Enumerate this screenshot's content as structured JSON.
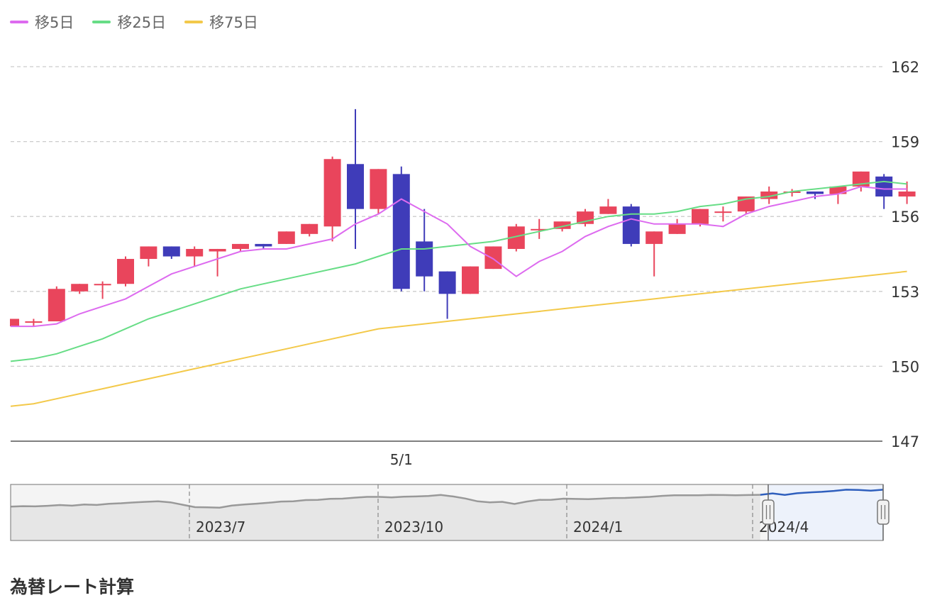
{
  "legend": [
    {
      "name": "移5日",
      "color": "#dd6bef"
    },
    {
      "name": "移25日",
      "color": "#67dd86"
    },
    {
      "name": "移75日",
      "color": "#f3c94a"
    }
  ],
  "colors": {
    "up": "#e9455c",
    "down": "#3f3cb9",
    "grid": "#cccccc",
    "axis": "#555555",
    "nav_line": "#999999",
    "nav_selected_line": "#2f5fbd",
    "nav_selected_fill": "#edf2fb",
    "nav_fill": "#e6e6e6"
  },
  "chart_data": {
    "type": "candlestick",
    "y_ticks": [
      147,
      150,
      153,
      156,
      159,
      162
    ],
    "ylim": [
      147,
      162
    ],
    "x_tick_label": "5/1",
    "x_tick_index": 17,
    "candles": [
      {
        "o": 151.6,
        "h": 151.9,
        "l": 151.6,
        "c": 151.9
      },
      {
        "o": 151.8,
        "h": 151.9,
        "l": 151.6,
        "c": 151.8
      },
      {
        "o": 151.8,
        "h": 153.2,
        "l": 151.8,
        "c": 153.1
      },
      {
        "o": 153.0,
        "h": 153.3,
        "l": 152.9,
        "c": 153.3
      },
      {
        "o": 153.3,
        "h": 153.4,
        "l": 152.7,
        "c": 153.3
      },
      {
        "o": 153.3,
        "h": 154.4,
        "l": 153.2,
        "c": 154.3
      },
      {
        "o": 154.3,
        "h": 154.8,
        "l": 154.0,
        "c": 154.8
      },
      {
        "o": 154.8,
        "h": 154.8,
        "l": 154.3,
        "c": 154.4
      },
      {
        "o": 154.4,
        "h": 154.8,
        "l": 154.0,
        "c": 154.7
      },
      {
        "o": 154.6,
        "h": 154.7,
        "l": 153.6,
        "c": 154.7
      },
      {
        "o": 154.7,
        "h": 154.9,
        "l": 154.6,
        "c": 154.9
      },
      {
        "o": 154.9,
        "h": 154.9,
        "l": 154.7,
        "c": 154.8
      },
      {
        "o": 154.9,
        "h": 155.4,
        "l": 154.9,
        "c": 155.4
      },
      {
        "o": 155.3,
        "h": 155.7,
        "l": 155.2,
        "c": 155.7
      },
      {
        "o": 155.6,
        "h": 158.4,
        "l": 155.0,
        "c": 158.3
      },
      {
        "o": 158.1,
        "h": 160.3,
        "l": 154.7,
        "c": 156.3
      },
      {
        "o": 156.3,
        "h": 157.9,
        "l": 156.1,
        "c": 157.9
      },
      {
        "o": 157.7,
        "h": 158.0,
        "l": 153.0,
        "c": 153.1
      },
      {
        "o": 155.0,
        "h": 156.3,
        "l": 153.0,
        "c": 153.6
      },
      {
        "o": 153.8,
        "h": 153.8,
        "l": 151.9,
        "c": 152.9
      },
      {
        "o": 152.9,
        "h": 154.0,
        "l": 152.9,
        "c": 154.0
      },
      {
        "o": 153.9,
        "h": 154.8,
        "l": 153.9,
        "c": 154.8
      },
      {
        "o": 154.7,
        "h": 155.7,
        "l": 154.6,
        "c": 155.6
      },
      {
        "o": 155.5,
        "h": 155.9,
        "l": 155.1,
        "c": 155.5
      },
      {
        "o": 155.5,
        "h": 155.8,
        "l": 155.4,
        "c": 155.8
      },
      {
        "o": 155.7,
        "h": 156.3,
        "l": 155.6,
        "c": 156.2
      },
      {
        "o": 156.1,
        "h": 156.7,
        "l": 156.1,
        "c": 156.4
      },
      {
        "o": 156.4,
        "h": 156.5,
        "l": 154.8,
        "c": 154.9
      },
      {
        "o": 154.9,
        "h": 155.4,
        "l": 153.6,
        "c": 155.4
      },
      {
        "o": 155.3,
        "h": 155.9,
        "l": 155.3,
        "c": 155.7
      },
      {
        "o": 155.7,
        "h": 156.3,
        "l": 155.6,
        "c": 156.3
      },
      {
        "o": 156.2,
        "h": 156.4,
        "l": 155.8,
        "c": 156.2
      },
      {
        "o": 156.2,
        "h": 156.8,
        "l": 156.1,
        "c": 156.8
      },
      {
        "o": 156.7,
        "h": 157.2,
        "l": 156.5,
        "c": 157.0
      },
      {
        "o": 157.0,
        "h": 157.1,
        "l": 156.8,
        "c": 157.0
      },
      {
        "o": 157.0,
        "h": 157.0,
        "l": 156.7,
        "c": 156.9
      },
      {
        "o": 156.9,
        "h": 157.2,
        "l": 156.5,
        "c": 157.2
      },
      {
        "o": 157.2,
        "h": 157.8,
        "l": 157.0,
        "c": 157.8
      },
      {
        "o": 157.6,
        "h": 157.7,
        "l": 156.3,
        "c": 156.8
      },
      {
        "o": 156.8,
        "h": 157.4,
        "l": 156.5,
        "c": 157.0
      }
    ],
    "ma5": [
      151.6,
      151.6,
      151.7,
      152.1,
      152.4,
      152.7,
      153.2,
      153.7,
      154.0,
      154.3,
      154.6,
      154.7,
      154.7,
      154.9,
      155.1,
      155.7,
      156.1,
      156.7,
      156.2,
      155.7,
      154.8,
      154.3,
      153.6,
      154.2,
      154.6,
      155.2,
      155.6,
      155.9,
      155.7,
      155.7,
      155.7,
      155.6,
      156.1,
      156.4,
      156.6,
      156.8,
      156.9,
      157.2,
      157.1,
      157.1
    ],
    "ma25": [
      150.2,
      150.3,
      150.5,
      150.8,
      151.1,
      151.5,
      151.9,
      152.2,
      152.5,
      152.8,
      153.1,
      153.3,
      153.5,
      153.7,
      153.9,
      154.1,
      154.4,
      154.7,
      154.7,
      154.8,
      154.9,
      155.0,
      155.2,
      155.4,
      155.6,
      155.8,
      156.0,
      156.1,
      156.1,
      156.2,
      156.4,
      156.5,
      156.7,
      156.8,
      157.0,
      157.1,
      157.2,
      157.3,
      157.4,
      157.3
    ],
    "ma75": [
      148.4,
      148.5,
      148.7,
      148.9,
      149.1,
      149.3,
      149.5,
      149.7,
      149.9,
      150.1,
      150.3,
      150.5,
      150.7,
      150.9,
      151.1,
      151.3,
      151.5,
      151.6,
      151.7,
      151.8,
      151.9,
      152.0,
      152.1,
      152.2,
      152.3,
      152.4,
      152.5,
      152.6,
      152.7,
      152.8,
      152.9,
      153.0,
      153.1,
      153.2,
      153.3,
      153.4,
      153.5,
      153.6,
      153.7,
      153.8
    ]
  },
  "navigator": {
    "labels": [
      "2023/7",
      "2023/10",
      "2024/1",
      "2024/4"
    ],
    "values": [
      139.5,
      140.0,
      139.8,
      140.4,
      141.2,
      140.5,
      141.8,
      141.3,
      142.5,
      143.0,
      143.8,
      144.5,
      145.0,
      144.0,
      141.5,
      139.0,
      138.8,
      138.5,
      140.6,
      141.8,
      142.6,
      143.5,
      144.8,
      145.0,
      146.3,
      146.5,
      147.6,
      147.8,
      148.8,
      149.6,
      149.6,
      149.0,
      149.8,
      150.0,
      150.5,
      151.6,
      150.0,
      147.9,
      145.0,
      143.9,
      144.5,
      142.3,
      144.8,
      146.5,
      146.6,
      147.8,
      147.5,
      147.2,
      147.8,
      148.4,
      148.5,
      149.1,
      149.6,
      150.6,
      151.2,
      151.3,
      151.2,
      151.6,
      151.5,
      151.3,
      151.5,
      151.7,
      153.2,
      151.6,
      153.3,
      154.2,
      154.8,
      155.7,
      157.0,
      156.7,
      156.0,
      157.0
    ]
  },
  "section": {
    "title": "為替レート計算"
  }
}
